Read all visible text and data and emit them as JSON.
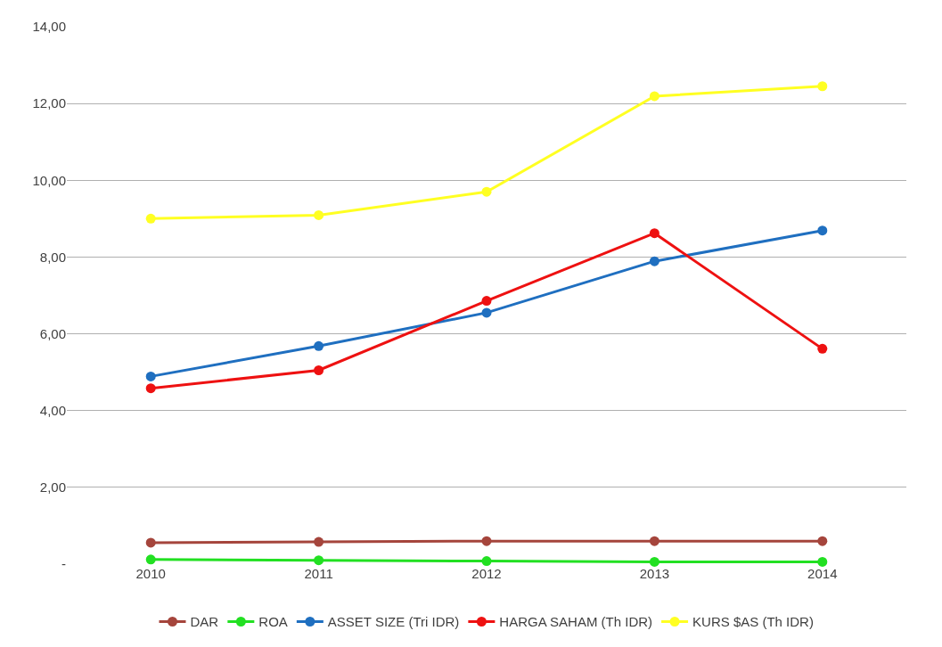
{
  "chart_data": {
    "type": "line",
    "categories": [
      "2010",
      "2011",
      "2012",
      "2013",
      "2014"
    ],
    "series": [
      {
        "name": "DAR",
        "color": "#a5453c",
        "values": [
          0.56,
          0.58,
          0.6,
          0.6,
          0.6
        ]
      },
      {
        "name": "ROA",
        "color": "#22e022",
        "values": [
          0.12,
          0.1,
          0.08,
          0.06,
          0.06
        ]
      },
      {
        "name": "ASSET SIZE (Tri IDR)",
        "color": "#1f6fc0",
        "values": [
          4.89,
          5.68,
          6.55,
          7.89,
          8.69
        ]
      },
      {
        "name": "HARGA SAHAM (Th IDR)",
        "color": "#ee1111",
        "values": [
          4.58,
          5.05,
          6.86,
          8.62,
          5.61
        ]
      },
      {
        "name": "KURS $AS (Th IDR)",
        "color": "#ffff22",
        "values": [
          9.0,
          9.09,
          9.7,
          12.19,
          12.45
        ]
      }
    ],
    "ylim": [
      0,
      14
    ],
    "yticks": [
      {
        "value": 0,
        "label": "-"
      },
      {
        "value": 2,
        "label": "2,00"
      },
      {
        "value": 4,
        "label": "4,00"
      },
      {
        "value": 6,
        "label": "6,00"
      },
      {
        "value": 8,
        "label": "8,00"
      },
      {
        "value": 10,
        "label": "10,00"
      },
      {
        "value": 12,
        "label": "12,00"
      },
      {
        "value": 14,
        "label": "14,00"
      }
    ],
    "grid": "y",
    "legend": "bottom",
    "marker": "circle",
    "line_style": "solid"
  }
}
